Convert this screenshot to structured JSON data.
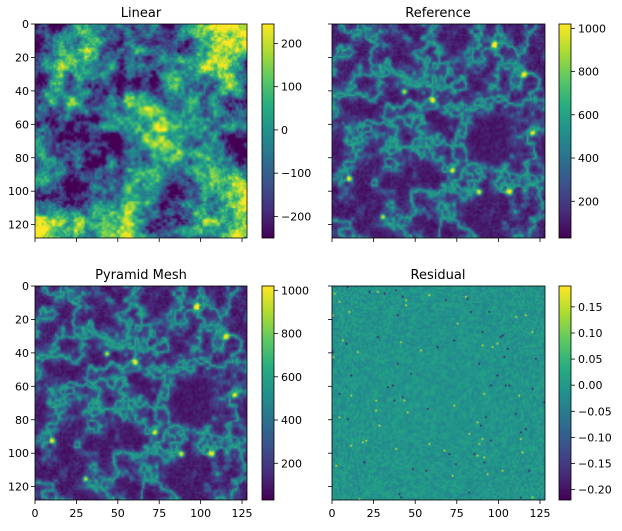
{
  "chart_data": [
    {
      "type": "heatmap",
      "title": "Linear",
      "x_ticks": [],
      "y_ticks": [
        "0",
        "20",
        "40",
        "60",
        "80",
        "100",
        "120"
      ],
      "x_range": [
        0,
        128
      ],
      "y_range": [
        0,
        128
      ],
      "colormap": "viridis",
      "colorbar": {
        "range": [
          -250,
          245
        ],
        "ticks": [
          "200",
          "100",
          "0",
          "−100",
          "−200"
        ],
        "tick_values": [
          200,
          100,
          0,
          -100,
          -200
        ]
      },
      "field": "linear"
    },
    {
      "type": "heatmap",
      "title": "Reference",
      "x_ticks": [],
      "y_ticks": [],
      "x_range": [
        0,
        128
      ],
      "y_range": [
        0,
        128
      ],
      "colormap": "viridis",
      "colorbar": {
        "range": [
          30,
          1020
        ],
        "ticks": [
          "1000",
          "800",
          "600",
          "400",
          "200"
        ],
        "tick_values": [
          1000,
          800,
          600,
          400,
          200
        ]
      },
      "field": "density"
    },
    {
      "type": "heatmap",
      "title": "Pyramid Mesh",
      "x_ticks": [
        "0",
        "25",
        "50",
        "75",
        "100",
        "125"
      ],
      "y_ticks": [
        "0",
        "20",
        "40",
        "60",
        "80",
        "100",
        "120"
      ],
      "x_range": [
        0,
        128
      ],
      "y_range": [
        0,
        128
      ],
      "colormap": "viridis",
      "colorbar": {
        "range": [
          30,
          1020
        ],
        "ticks": [
          "1000",
          "800",
          "600",
          "400",
          "200"
        ],
        "tick_values": [
          1000,
          800,
          600,
          400,
          200
        ]
      },
      "field": "density"
    },
    {
      "type": "heatmap",
      "title": "Residual",
      "x_ticks": [
        "0",
        "25",
        "50",
        "75",
        "100",
        "125"
      ],
      "y_ticks": [],
      "x_range": [
        0,
        128
      ],
      "y_range": [
        0,
        128
      ],
      "colormap": "viridis",
      "colorbar": {
        "range": [
          -0.22,
          0.19
        ],
        "ticks": [
          "0.15",
          "0.10",
          "0.05",
          "0.00",
          "−0.05",
          "−0.10",
          "−0.15",
          "−0.20"
        ],
        "tick_values": [
          0.15,
          0.1,
          0.05,
          0.0,
          -0.05,
          -0.1,
          -0.15,
          -0.2
        ]
      },
      "field": "residual"
    }
  ]
}
